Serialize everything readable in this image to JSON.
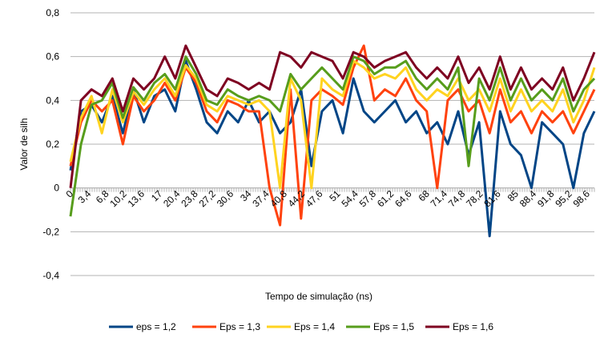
{
  "chart_data": {
    "type": "line",
    "title": "",
    "xlabel": "Tempo de simulação (ns)",
    "ylabel": "Valor de silh",
    "ylim": [
      -0.4,
      0.8
    ],
    "xlim": [
      0,
      100
    ],
    "yticks": [
      -0.4,
      -0.2,
      0,
      0.2,
      0.4,
      0.6,
      0.8
    ],
    "ytick_labels": [
      "-0,4",
      "-0,2",
      "0",
      "0,2",
      "0,4",
      "0,6",
      "0,8"
    ],
    "xtick_values": [
      0,
      3.4,
      6.8,
      10.2,
      13.6,
      17,
      20.4,
      23.8,
      27.2,
      30.6,
      34,
      37.4,
      40.8,
      44.2,
      47.6,
      51,
      54.4,
      57.8,
      61.2,
      64.6,
      68,
      71.4,
      74.8,
      78.2,
      81.6,
      85,
      88.4,
      91.8,
      95.2,
      98.6
    ],
    "xtick_labels": [
      "0",
      "3,4",
      "6,8",
      "10,2",
      "13,6",
      "17",
      "20,4",
      "23,8",
      "27,2",
      "30,6",
      "34",
      "37,4",
      "40,8",
      "44,2",
      "47,6",
      "51",
      "54,4",
      "57,8",
      "61,2",
      "64,6",
      "68",
      "71,4",
      "74,8",
      "78,2",
      "81,6",
      "85",
      "88,4",
      "91,8",
      "95,2",
      "98,6"
    ],
    "grid": "horizontal",
    "legend_position": "bottom",
    "x": [
      0,
      2,
      4,
      6,
      8,
      10,
      12,
      14,
      16,
      18,
      20,
      22,
      24,
      26,
      28,
      30,
      32,
      34,
      36,
      38,
      40,
      42,
      44,
      46,
      48,
      50,
      52,
      54,
      56,
      58,
      60,
      62,
      64,
      66,
      68,
      70,
      72,
      74,
      76,
      78,
      80,
      82,
      84,
      86,
      88,
      90,
      92,
      94,
      96,
      98,
      100
    ],
    "series": [
      {
        "name": "eps = 1,2",
        "color": "#004586",
        "values": [
          0.08,
          0.35,
          0.38,
          0.3,
          0.42,
          0.25,
          0.45,
          0.3,
          0.42,
          0.45,
          0.35,
          0.58,
          0.45,
          0.3,
          0.25,
          0.35,
          0.3,
          0.4,
          0.3,
          0.35,
          0.25,
          0.3,
          0.45,
          0.1,
          0.35,
          0.4,
          0.25,
          0.5,
          0.35,
          0.3,
          0.35,
          0.4,
          0.3,
          0.35,
          0.25,
          0.3,
          0.2,
          0.35,
          0.15,
          0.3,
          -0.22,
          0.35,
          0.2,
          0.15,
          0.0,
          0.3,
          0.25,
          0.2,
          0.0,
          0.25,
          0.35
        ]
      },
      {
        "name": "Eps = 1,3",
        "color": "#ff420e",
        "values": [
          0.1,
          0.3,
          0.4,
          0.35,
          0.4,
          0.2,
          0.42,
          0.35,
          0.4,
          0.48,
          0.4,
          0.55,
          0.48,
          0.35,
          0.3,
          0.4,
          0.38,
          0.35,
          0.35,
          0.0,
          -0.17,
          0.45,
          -0.14,
          0.4,
          0.45,
          0.42,
          0.38,
          0.55,
          0.65,
          0.4,
          0.45,
          0.42,
          0.5,
          0.4,
          0.35,
          0.0,
          0.4,
          0.45,
          0.35,
          0.4,
          0.25,
          0.45,
          0.3,
          0.35,
          0.25,
          0.35,
          0.3,
          0.35,
          0.25,
          0.35,
          0.45
        ]
      },
      {
        "name": "Eps = 1,4",
        "color": "#ffd320",
        "values": [
          0.12,
          0.32,
          0.42,
          0.25,
          0.45,
          0.3,
          0.44,
          0.38,
          0.45,
          0.5,
          0.42,
          0.56,
          0.5,
          0.38,
          0.35,
          0.42,
          0.4,
          0.38,
          0.4,
          0.35,
          0.0,
          0.5,
          0.4,
          0.0,
          0.5,
          0.45,
          0.42,
          0.58,
          0.55,
          0.5,
          0.52,
          0.5,
          0.55,
          0.45,
          0.4,
          0.45,
          0.42,
          0.5,
          0.4,
          0.45,
          0.35,
          0.5,
          0.35,
          0.45,
          0.35,
          0.4,
          0.35,
          0.45,
          0.3,
          0.4,
          0.55
        ]
      },
      {
        "name": "Eps = 1,5",
        "color": "#579d1c",
        "values": [
          -0.13,
          0.2,
          0.38,
          0.4,
          0.48,
          0.32,
          0.46,
          0.4,
          0.48,
          0.52,
          0.45,
          0.6,
          0.52,
          0.4,
          0.38,
          0.45,
          0.42,
          0.4,
          0.42,
          0.4,
          0.35,
          0.52,
          0.45,
          0.5,
          0.55,
          0.5,
          0.45,
          0.6,
          0.58,
          0.52,
          0.55,
          0.55,
          0.58,
          0.5,
          0.45,
          0.5,
          0.45,
          0.55,
          0.1,
          0.5,
          0.4,
          0.55,
          0.4,
          0.5,
          0.4,
          0.45,
          0.4,
          0.5,
          0.35,
          0.45,
          0.5
        ]
      },
      {
        "name": "Eps = 1,6",
        "color": "#7e0021",
        "values": [
          0.0,
          0.4,
          0.45,
          0.42,
          0.5,
          0.35,
          0.5,
          0.45,
          0.5,
          0.6,
          0.5,
          0.65,
          0.55,
          0.45,
          0.42,
          0.5,
          0.48,
          0.45,
          0.48,
          0.45,
          0.62,
          0.6,
          0.55,
          0.62,
          0.6,
          0.58,
          0.5,
          0.62,
          0.6,
          0.55,
          0.58,
          0.6,
          0.62,
          0.55,
          0.5,
          0.55,
          0.5,
          0.6,
          0.48,
          0.55,
          0.45,
          0.6,
          0.45,
          0.55,
          0.45,
          0.5,
          0.45,
          0.55,
          0.4,
          0.5,
          0.62
        ]
      }
    ]
  }
}
